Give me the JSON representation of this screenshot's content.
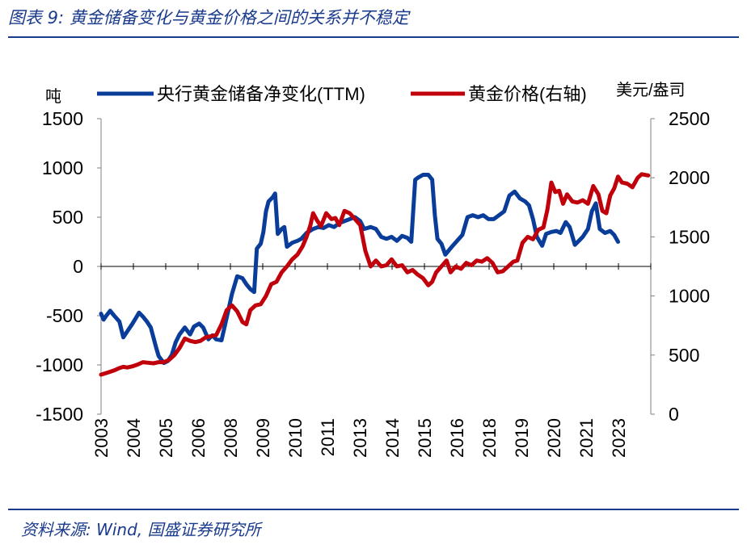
{
  "header": {
    "title": "图表 9:  黄金储备变化与黄金价格之间的关系并不稳定"
  },
  "footer": {
    "source": "资料来源:  Wind,  国盛证券研究所"
  },
  "colors": {
    "series1": "#0a3d9a",
    "series2": "#c0000b",
    "brand": "#1a3a8c",
    "axis": "#808080"
  },
  "chart_data": {
    "type": "line",
    "left_unit": "吨",
    "right_unit": "美元/盎司",
    "left_ylim": [
      -1500,
      1500
    ],
    "right_ylim": [
      0,
      2500
    ],
    "left_ticks": [
      "1500",
      "1000",
      "500",
      "0",
      "-500",
      "-1000",
      "-1500"
    ],
    "right_ticks": [
      "2500",
      "2000",
      "1500",
      "1000",
      "500",
      "0"
    ],
    "x_range": [
      2003,
      2024
    ],
    "x_ticks": [
      "2003",
      "2004",
      "2005",
      "2006",
      "2008",
      "2009",
      "2010",
      "2011",
      "2013",
      "2014",
      "2015",
      "2016",
      "2018",
      "2019",
      "2020",
      "2021",
      "2023"
    ],
    "legend": [
      "央行黄金储备净变化(TTM)",
      "黄金价格(右轴)"
    ],
    "series": [
      {
        "name": "央行黄金储备净变化(TTM)",
        "axis": "left",
        "points": [
          [
            2003.0,
            -480
          ],
          [
            2003.1,
            -540
          ],
          [
            2003.2,
            -500
          ],
          [
            2003.35,
            -450
          ],
          [
            2003.5,
            -500
          ],
          [
            2003.7,
            -560
          ],
          [
            2003.85,
            -720
          ],
          [
            2004.0,
            -660
          ],
          [
            2004.2,
            -580
          ],
          [
            2004.45,
            -470
          ],
          [
            2004.6,
            -510
          ],
          [
            2004.75,
            -560
          ],
          [
            2004.9,
            -620
          ],
          [
            2005.1,
            -820
          ],
          [
            2005.2,
            -910
          ],
          [
            2005.4,
            -980
          ],
          [
            2005.55,
            -960
          ],
          [
            2005.7,
            -900
          ],
          [
            2005.85,
            -770
          ],
          [
            2006.0,
            -690
          ],
          [
            2006.2,
            -620
          ],
          [
            2006.4,
            -690
          ],
          [
            2006.55,
            -610
          ],
          [
            2006.75,
            -580
          ],
          [
            2006.9,
            -620
          ],
          [
            2007.1,
            -740
          ],
          [
            2007.25,
            -700
          ],
          [
            2007.4,
            -740
          ],
          [
            2007.6,
            -750
          ],
          [
            2007.8,
            -520
          ],
          [
            2008.0,
            -280
          ],
          [
            2008.2,
            -100
          ],
          [
            2008.4,
            -120
          ],
          [
            2008.55,
            -180
          ],
          [
            2008.7,
            -230
          ],
          [
            2008.85,
            -260
          ],
          [
            2008.95,
            180
          ],
          [
            2009.1,
            230
          ],
          [
            2009.2,
            350
          ],
          [
            2009.3,
            560
          ],
          [
            2009.4,
            660
          ],
          [
            2009.55,
            700
          ],
          [
            2009.65,
            740
          ],
          [
            2009.75,
            330
          ],
          [
            2009.9,
            380
          ],
          [
            2010.0,
            400
          ],
          [
            2010.1,
            200
          ],
          [
            2010.3,
            240
          ],
          [
            2010.5,
            260
          ],
          [
            2010.65,
            280
          ],
          [
            2010.85,
            340
          ],
          [
            2011.1,
            380
          ],
          [
            2011.3,
            400
          ],
          [
            2011.5,
            390
          ],
          [
            2011.7,
            420
          ],
          [
            2011.9,
            400
          ],
          [
            2012.1,
            440
          ],
          [
            2012.3,
            460
          ],
          [
            2012.5,
            480
          ],
          [
            2012.7,
            500
          ],
          [
            2012.9,
            460
          ],
          [
            2013.05,
            380
          ],
          [
            2013.3,
            400
          ],
          [
            2013.5,
            380
          ],
          [
            2013.7,
            300
          ],
          [
            2013.9,
            280
          ],
          [
            2014.1,
            300
          ],
          [
            2014.3,
            260
          ],
          [
            2014.5,
            310
          ],
          [
            2014.7,
            290
          ],
          [
            2014.85,
            250
          ],
          [
            2015.0,
            880
          ],
          [
            2015.1,
            900
          ],
          [
            2015.3,
            930
          ],
          [
            2015.5,
            930
          ],
          [
            2015.65,
            880
          ],
          [
            2015.75,
            520
          ],
          [
            2015.85,
            280
          ],
          [
            2016.0,
            230
          ],
          [
            2016.15,
            120
          ],
          [
            2016.4,
            200
          ],
          [
            2016.6,
            260
          ],
          [
            2016.8,
            320
          ],
          [
            2017.0,
            500
          ],
          [
            2017.2,
            520
          ],
          [
            2017.4,
            500
          ],
          [
            2017.6,
            520
          ],
          [
            2017.8,
            480
          ],
          [
            2018.0,
            480
          ],
          [
            2018.2,
            520
          ],
          [
            2018.4,
            560
          ],
          [
            2018.6,
            720
          ],
          [
            2018.8,
            760
          ],
          [
            2019.0,
            690
          ],
          [
            2019.2,
            660
          ],
          [
            2019.35,
            620
          ],
          [
            2019.5,
            480
          ],
          [
            2019.65,
            300
          ],
          [
            2019.85,
            210
          ],
          [
            2020.0,
            330
          ],
          [
            2020.2,
            350
          ],
          [
            2020.4,
            360
          ],
          [
            2020.55,
            340
          ],
          [
            2020.75,
            450
          ],
          [
            2020.9,
            400
          ],
          [
            2021.1,
            220
          ],
          [
            2021.25,
            260
          ],
          [
            2021.4,
            300
          ],
          [
            2021.6,
            380
          ],
          [
            2021.75,
            560
          ],
          [
            2021.9,
            640
          ],
          [
            2022.05,
            380
          ],
          [
            2022.25,
            340
          ],
          [
            2022.45,
            360
          ],
          [
            2022.6,
            320
          ],
          [
            2022.75,
            250
          ]
        ]
      },
      {
        "name": "黄金价格(右轴)",
        "axis": "right",
        "points": [
          [
            2003.0,
            335
          ],
          [
            2003.15,
            345
          ],
          [
            2003.3,
            355
          ],
          [
            2003.5,
            370
          ],
          [
            2003.7,
            390
          ],
          [
            2003.85,
            400
          ],
          [
            2004.0,
            395
          ],
          [
            2004.2,
            405
          ],
          [
            2004.4,
            420
          ],
          [
            2004.6,
            440
          ],
          [
            2004.8,
            435
          ],
          [
            2005.0,
            430
          ],
          [
            2005.2,
            440
          ],
          [
            2005.4,
            440
          ],
          [
            2005.6,
            460
          ],
          [
            2005.8,
            500
          ],
          [
            2006.0,
            560
          ],
          [
            2006.2,
            640
          ],
          [
            2006.4,
            620
          ],
          [
            2006.6,
            610
          ],
          [
            2006.8,
            620
          ],
          [
            2007.0,
            650
          ],
          [
            2007.2,
            660
          ],
          [
            2007.4,
            670
          ],
          [
            2007.6,
            760
          ],
          [
            2007.8,
            880
          ],
          [
            2008.0,
            920
          ],
          [
            2008.2,
            870
          ],
          [
            2008.4,
            780
          ],
          [
            2008.55,
            760
          ],
          [
            2008.7,
            880
          ],
          [
            2008.9,
            920
          ],
          [
            2009.1,
            930
          ],
          [
            2009.3,
            1000
          ],
          [
            2009.5,
            1100
          ],
          [
            2009.7,
            1120
          ],
          [
            2009.9,
            1200
          ],
          [
            2010.1,
            1250
          ],
          [
            2010.3,
            1310
          ],
          [
            2010.5,
            1350
          ],
          [
            2010.7,
            1420
          ],
          [
            2010.85,
            1500
          ],
          [
            2011.0,
            1600
          ],
          [
            2011.1,
            1700
          ],
          [
            2011.25,
            1640
          ],
          [
            2011.4,
            1590
          ],
          [
            2011.6,
            1700
          ],
          [
            2011.8,
            1650
          ],
          [
            2011.95,
            1660
          ],
          [
            2012.1,
            1600
          ],
          [
            2012.3,
            1720
          ],
          [
            2012.5,
            1700
          ],
          [
            2012.7,
            1650
          ],
          [
            2012.9,
            1600
          ],
          [
            2013.1,
            1380
          ],
          [
            2013.3,
            1250
          ],
          [
            2013.5,
            1300
          ],
          [
            2013.7,
            1250
          ],
          [
            2013.9,
            1260
          ],
          [
            2014.1,
            1310
          ],
          [
            2014.3,
            1250
          ],
          [
            2014.5,
            1260
          ],
          [
            2014.7,
            1200
          ],
          [
            2014.9,
            1220
          ],
          [
            2015.1,
            1180
          ],
          [
            2015.3,
            1150
          ],
          [
            2015.5,
            1090
          ],
          [
            2015.65,
            1120
          ],
          [
            2015.8,
            1200
          ],
          [
            2016.0,
            1250
          ],
          [
            2016.2,
            1300
          ],
          [
            2016.35,
            1200
          ],
          [
            2016.55,
            1250
          ],
          [
            2016.75,
            1230
          ],
          [
            2016.95,
            1280
          ],
          [
            2017.15,
            1260
          ],
          [
            2017.35,
            1300
          ],
          [
            2017.55,
            1290
          ],
          [
            2017.75,
            1320
          ],
          [
            2017.95,
            1280
          ],
          [
            2018.15,
            1200
          ],
          [
            2018.35,
            1210
          ],
          [
            2018.55,
            1250
          ],
          [
            2018.75,
            1290
          ],
          [
            2018.9,
            1300
          ],
          [
            2019.1,
            1450
          ],
          [
            2019.3,
            1500
          ],
          [
            2019.5,
            1480
          ],
          [
            2019.7,
            1560
          ],
          [
            2019.9,
            1580
          ],
          [
            2020.05,
            1730
          ],
          [
            2020.2,
            1960
          ],
          [
            2020.35,
            1880
          ],
          [
            2020.5,
            1890
          ],
          [
            2020.65,
            1780
          ],
          [
            2020.8,
            1860
          ],
          [
            2021.0,
            1800
          ],
          [
            2021.2,
            1790
          ],
          [
            2021.4,
            1810
          ],
          [
            2021.6,
            1780
          ],
          [
            2021.8,
            1930
          ],
          [
            2022.0,
            1860
          ],
          [
            2022.15,
            1720
          ],
          [
            2022.3,
            1700
          ],
          [
            2022.45,
            1850
          ],
          [
            2022.6,
            1910
          ],
          [
            2022.75,
            2010
          ],
          [
            2022.9,
            1960
          ],
          [
            2023.1,
            1950
          ],
          [
            2023.3,
            1920
          ],
          [
            2023.5,
            2000
          ],
          [
            2023.65,
            2030
          ],
          [
            2023.9,
            2020
          ]
        ]
      }
    ]
  }
}
